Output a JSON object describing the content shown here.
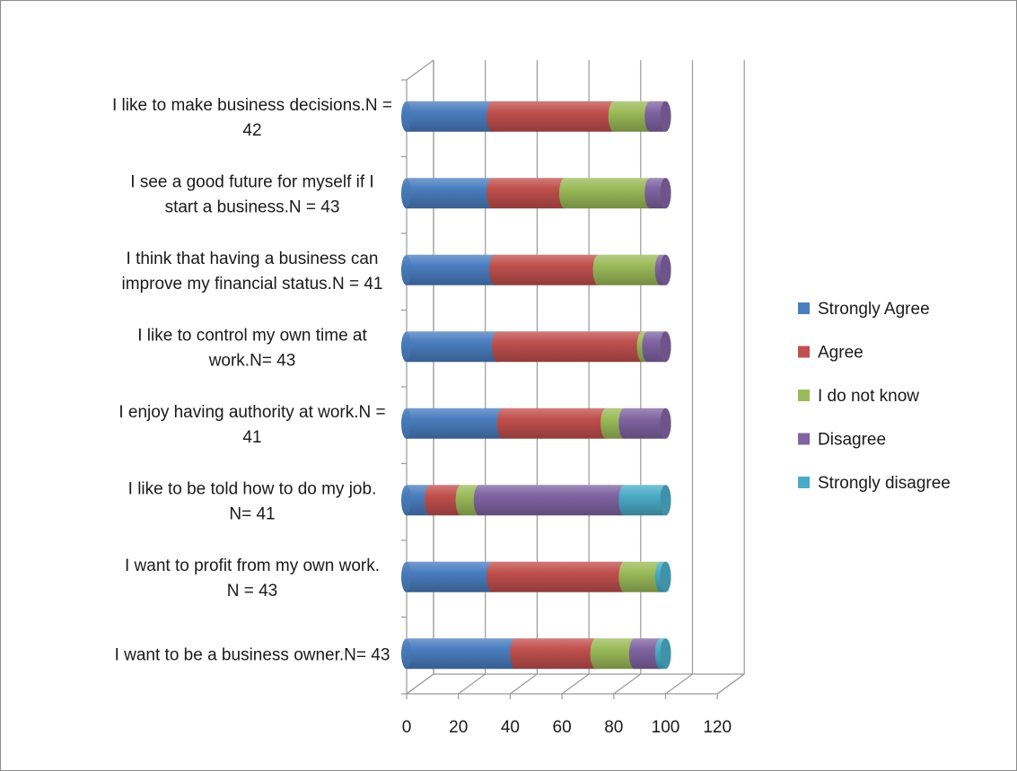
{
  "chart_data": {
    "type": "bar",
    "orientation": "horizontal",
    "stacked": true,
    "three_d": true,
    "title": "",
    "xlabel": "",
    "ylabel": "",
    "xlim": [
      0,
      120
    ],
    "x_ticks": [
      "0",
      "20",
      "40",
      "60",
      "80",
      "100",
      "120"
    ],
    "grid": "vertical",
    "legend_position": "right",
    "categories": [
      [
        "I like to make business decisions.N =",
        "42"
      ],
      [
        "I see a good future for myself if I",
        "start a business.N = 43"
      ],
      [
        "I think that having a business can",
        "improve my financial status.N = 41"
      ],
      [
        "I like to control my own time at",
        "work.N= 43"
      ],
      [
        "I enjoy having authority at work.N =",
        "41"
      ],
      [
        "I like to be told how to do my job.",
        "N= 41"
      ],
      [
        "I want to profit from my own work.",
        "N = 43"
      ],
      [
        "I want to be a business owner.N= 43"
      ]
    ],
    "series": [
      {
        "name": "Strongly Agree",
        "color": "#4a7dbf",
        "values": [
          33,
          33,
          34,
          35,
          37,
          9,
          33,
          42
        ]
      },
      {
        "name": "Agree",
        "color": "#c0504d",
        "values": [
          47,
          28,
          40,
          56,
          40,
          12,
          51,
          31
        ]
      },
      {
        "name": "I do not know",
        "color": "#9bbb59",
        "values": [
          14,
          33,
          24,
          2,
          7,
          7,
          14,
          15
        ]
      },
      {
        "name": "Disagree",
        "color": "#8064a2",
        "values": [
          6,
          6,
          2,
          7,
          16,
          56,
          0,
          10
        ]
      },
      {
        "name": "Strongly disagree",
        "color": "#4bacc6",
        "values": [
          0,
          0,
          0,
          0,
          0,
          16,
          2,
          2
        ]
      }
    ]
  }
}
